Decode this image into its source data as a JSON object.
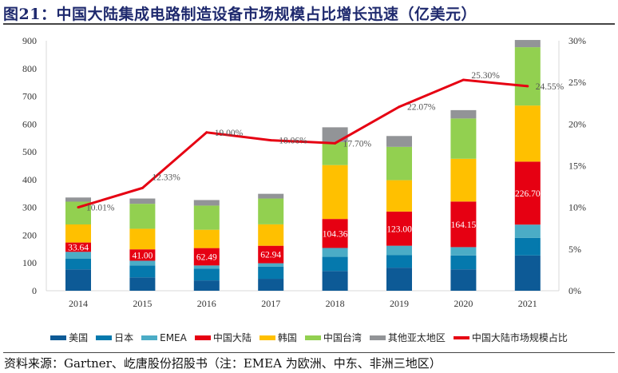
{
  "title": "图21：中国大陆集成电路制造设备市场规模占比增长迅速（亿美元）",
  "source": "资料来源：Gartner、屹唐股份招股书（注：EMEA 为欧洲、中东、非洲三地区）",
  "chart_data": {
    "type": "bar",
    "stacked": true,
    "title": "",
    "categories": [
      "2014",
      "2015",
      "2016",
      "2017",
      "2018",
      "2019",
      "2020",
      "2021"
    ],
    "ylim": [
      0,
      900
    ],
    "yticks": [
      "0",
      "100",
      "200",
      "300",
      "400",
      "500",
      "600",
      "700",
      "800",
      "900"
    ],
    "y2lim": [
      0,
      30
    ],
    "y2ticks": [
      "0%",
      "5%",
      "10%",
      "15%",
      "20%",
      "25%",
      "30%"
    ],
    "grid": false,
    "legend_position": "bottom",
    "series": [
      {
        "name": "美国",
        "color": "#0d5a96",
        "values": [
          77,
          48,
          37,
          43,
          71,
          83,
          77,
          127
        ]
      },
      {
        "name": "日本",
        "color": "#0579ad",
        "values": [
          38,
          43,
          42,
          44,
          51,
          45,
          50,
          63
        ]
      },
      {
        "name": "EMEA",
        "color": "#4bacc6",
        "values": [
          25,
          17,
          12,
          12,
          32,
          34,
          30,
          48
        ]
      },
      {
        "name": "中国大陆",
        "color": "#e60012",
        "values": [
          33.64,
          41.0,
          62.49,
          62.94,
          104.36,
          123.0,
          164.15,
          226.7
        ],
        "labels": [
          "33.64",
          "41.00",
          "62.49",
          "62.94",
          "104.36",
          "123.00",
          "164.15",
          "226.70"
        ]
      },
      {
        "name": "韩国",
        "color": "#ffc000",
        "values": [
          65,
          74,
          66,
          77,
          194,
          113,
          154,
          202
        ]
      },
      {
        "name": "中国台湾",
        "color": "#92d050",
        "values": [
          82,
          90,
          87,
          93,
          83,
          120,
          145,
          210
        ]
      },
      {
        "name": "其他亚太地区",
        "color": "#929497",
        "values": [
          15,
          19,
          20,
          17,
          53,
          39,
          30,
          26
        ]
      }
    ],
    "line": {
      "name": "中国大陆市场规模占比",
      "color": "#e60012",
      "axis": "right",
      "values": [
        10.01,
        12.33,
        19.0,
        18.06,
        17.7,
        22.07,
        25.3,
        24.55
      ],
      "labels": [
        "10.01%",
        "12.33%",
        "19.00%",
        "18.06%",
        "17.70%",
        "22.07%",
        "25.30%",
        "24.55%"
      ]
    }
  }
}
